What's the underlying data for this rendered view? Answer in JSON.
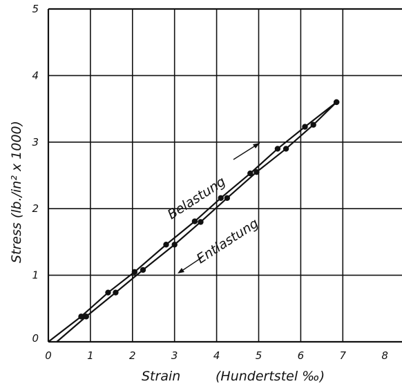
{
  "chart_data": {
    "type": "line",
    "xlabel": "Strain",
    "xlabel_unit": "(Hundertstel ‰)",
    "ylabel": "Stress (lb./in² x 1000)",
    "xlim": [
      0,
      8
    ],
    "ylim": [
      0,
      5
    ],
    "x_ticks": [
      "0",
      "1",
      "2",
      "3",
      "4",
      "5",
      "6",
      "7",
      "8"
    ],
    "y_ticks": [
      "0",
      "1",
      "2",
      "3",
      "4",
      "5"
    ],
    "grid": true,
    "series": [
      {
        "name": "Belastung",
        "x": [
          0.0,
          0.78,
          1.42,
          2.05,
          2.8,
          3.48,
          4.1,
          4.8,
          5.45,
          6.1,
          6.85
        ],
        "y": [
          0.0,
          0.38,
          0.74,
          1.05,
          1.46,
          1.81,
          2.16,
          2.53,
          2.9,
          3.23,
          3.6
        ]
      },
      {
        "name": "Entlastung",
        "x": [
          0.2,
          0.9,
          1.6,
          2.25,
          3.0,
          3.62,
          4.25,
          4.95,
          5.65,
          6.3,
          6.85
        ],
        "y": [
          0.0,
          0.38,
          0.74,
          1.08,
          1.46,
          1.8,
          2.16,
          2.55,
          2.9,
          3.26,
          3.6
        ]
      }
    ],
    "annotations": [
      "Belastung",
      "Entlastung"
    ]
  }
}
